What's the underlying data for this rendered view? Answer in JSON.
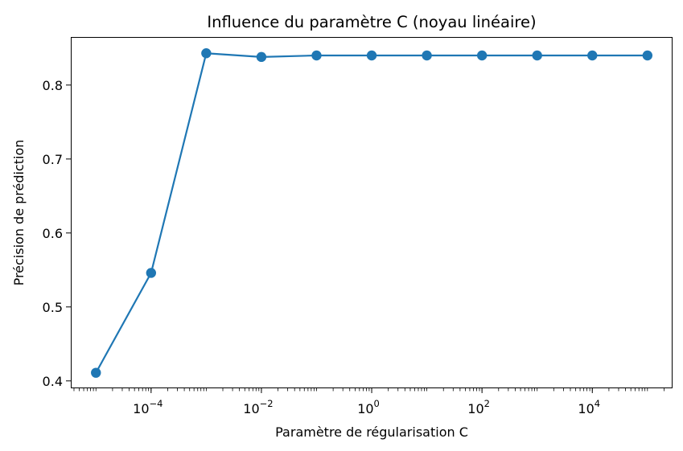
{
  "chart_data": {
    "type": "line",
    "title": "Influence du paramètre C (noyau linéaire)",
    "xlabel": "Paramètre de régularisation C",
    "ylabel": "Précision de prédiction",
    "x_scale": "log",
    "x": [
      1e-05,
      0.0001,
      0.001,
      0.01,
      0.1,
      1,
      10,
      100,
      1000,
      10000,
      100000
    ],
    "series": [
      {
        "name": "",
        "color": "#1f77b4",
        "marker": "circle",
        "values": [
          0.411,
          0.546,
          0.843,
          0.838,
          0.84,
          0.84,
          0.84,
          0.84,
          0.84,
          0.84,
          0.84
        ]
      }
    ],
    "xlim": [
      3.5e-06,
      285000
    ],
    "ylim": [
      0.39,
      0.865
    ],
    "x_ticks": [
      {
        "value": 0.0001,
        "base": "10",
        "exponent": "−4"
      },
      {
        "value": 0.01,
        "base": "10",
        "exponent": "−2"
      },
      {
        "value": 1,
        "base": "10",
        "exponent": "0"
      },
      {
        "value": 100,
        "base": "10",
        "exponent": "2"
      },
      {
        "value": 10000,
        "base": "10",
        "exponent": "4"
      }
    ],
    "y_ticks": [
      {
        "value": 0.4,
        "label": "0.4"
      },
      {
        "value": 0.5,
        "label": "0.5"
      },
      {
        "value": 0.6,
        "label": "0.6"
      },
      {
        "value": 0.7,
        "label": "0.7"
      },
      {
        "value": 0.8,
        "label": "0.8"
      }
    ],
    "grid": false,
    "legend": "none"
  }
}
